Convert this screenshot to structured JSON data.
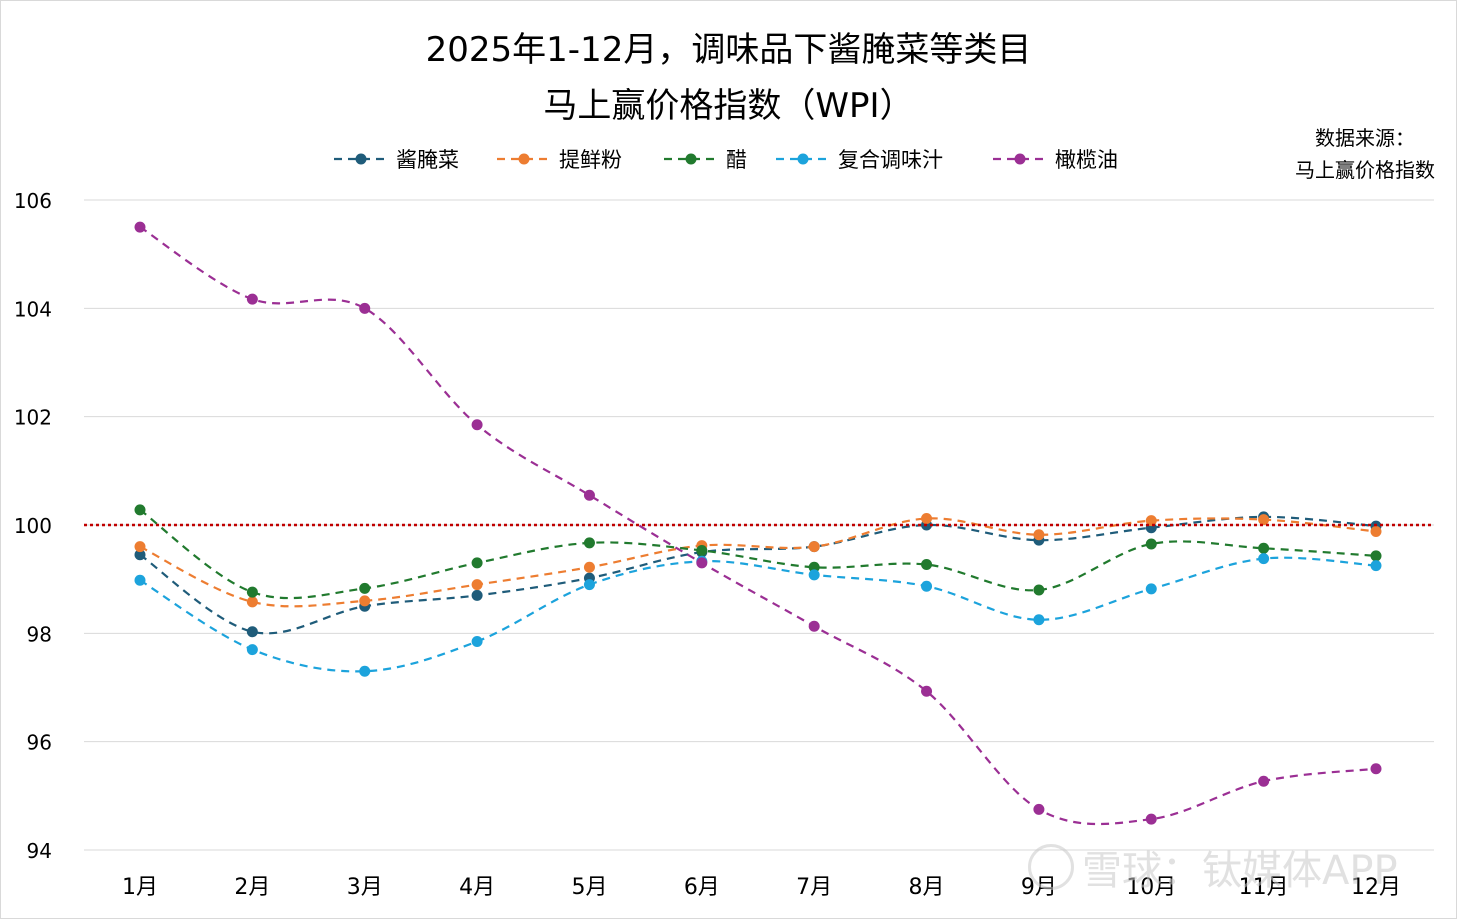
{
  "chart_data": {
    "type": "line",
    "title_lines": [
      "2025年1-12月，调味品下酱腌菜等类目",
      "马上赢价格指数（WPI）"
    ],
    "source_lines": [
      "数据来源：",
      "马上赢价格指数"
    ],
    "categories": [
      "1月",
      "2月",
      "3月",
      "4月",
      "5月",
      "6月",
      "7月",
      "8月",
      "9月",
      "10月",
      "11月",
      "12月"
    ],
    "y_ticks": [
      "94",
      "96",
      "98",
      "100",
      "102",
      "104",
      "106"
    ],
    "ylim": [
      94,
      106
    ],
    "reference_line": 100,
    "reference_color": "#c00000",
    "grid": true,
    "legend_position": "top",
    "line_style": "dashed",
    "series": [
      {
        "name": "酱腌菜",
        "color": "#1f5c7a",
        "values": [
          99.45,
          98.03,
          98.5,
          98.7,
          99.02,
          99.5,
          99.6,
          100.0,
          99.72,
          99.95,
          100.15,
          99.98
        ]
      },
      {
        "name": "提鲜粉",
        "color": "#ed7d31",
        "values": [
          99.6,
          98.58,
          98.6,
          98.9,
          99.22,
          99.62,
          99.6,
          100.12,
          99.82,
          100.08,
          100.1,
          99.88
        ]
      },
      {
        "name": "醋",
        "color": "#217a2e",
        "values": [
          100.28,
          98.76,
          98.83,
          99.3,
          99.67,
          99.53,
          99.22,
          99.27,
          98.8,
          99.65,
          99.57,
          99.43
        ]
      },
      {
        "name": "复合调味汁",
        "color": "#1ca3dc",
        "values": [
          98.98,
          97.7,
          97.3,
          97.85,
          98.9,
          99.33,
          99.08,
          98.87,
          98.25,
          98.82,
          99.38,
          99.25
        ]
      },
      {
        "name": "橄榄油",
        "color": "#9b2f94",
        "values": [
          105.5,
          104.17,
          104.0,
          101.85,
          100.55,
          99.3,
          98.13,
          96.93,
          94.75,
          94.57,
          95.27,
          95.5
        ]
      }
    ]
  },
  "watermark": {
    "text": "雪球：钛媒体APP"
  }
}
